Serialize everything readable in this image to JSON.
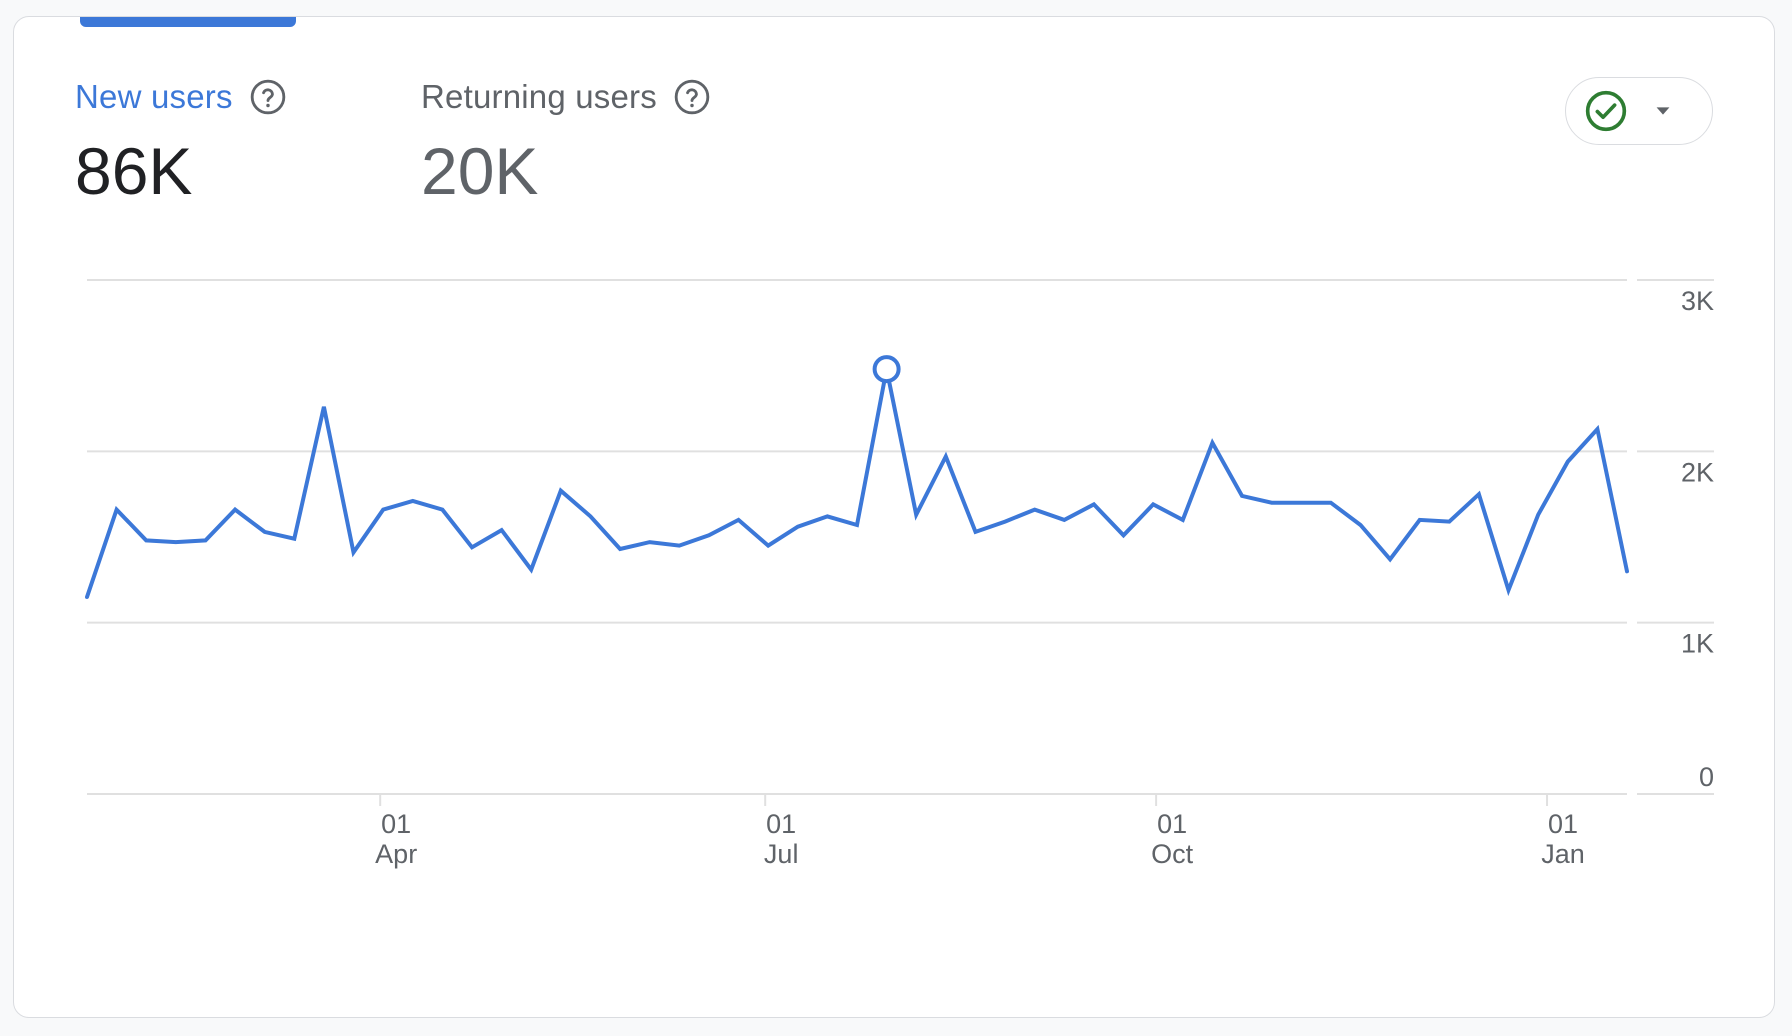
{
  "metrics": [
    {
      "label": "New users",
      "value": "86K",
      "active": true
    },
    {
      "label": "Returning users",
      "value": "20K",
      "active": false
    }
  ],
  "icons": {
    "help": "help-circle-icon",
    "status": "check-circle-icon",
    "dropdown": "caret-down-icon"
  },
  "colors": {
    "accent": "#3c78d8",
    "status_green": "#2e7d32",
    "grid": "#e0e0e0"
  },
  "chart_data": {
    "type": "line",
    "y_ticks": [
      "3K",
      "2K",
      "1K",
      "0"
    ],
    "y_tick_values": [
      3000,
      2000,
      1000,
      0
    ],
    "ylim": [
      0,
      3000
    ],
    "x_ticks": [
      {
        "day": "01",
        "month": "Apr",
        "index": 9.9
      },
      {
        "day": "01",
        "month": "Jul",
        "index": 22.9
      },
      {
        "day": "01",
        "month": "Oct",
        "index": 36.1
      },
      {
        "day": "01",
        "month": "Jan",
        "index": 49.3
      }
    ],
    "series": [
      {
        "values": [
          1150,
          1660,
          1480,
          1470,
          1480,
          1660,
          1530,
          1490,
          2260,
          1410,
          1660,
          1710,
          1660,
          1440,
          1540,
          1310,
          1770,
          1620,
          1430,
          1470,
          1450,
          1510,
          1600,
          1450,
          1560,
          1620,
          1570,
          2480,
          1630,
          1970,
          1530,
          1590,
          1660,
          1600,
          1690,
          1510,
          1690,
          1600,
          2050,
          1740,
          1700,
          1700,
          1700,
          1570,
          1370,
          1600,
          1590,
          1750,
          1190,
          1630,
          1940,
          2130,
          1300
        ],
        "highlight_index": 27
      }
    ],
    "grid": true,
    "y_axis_position": "right"
  }
}
